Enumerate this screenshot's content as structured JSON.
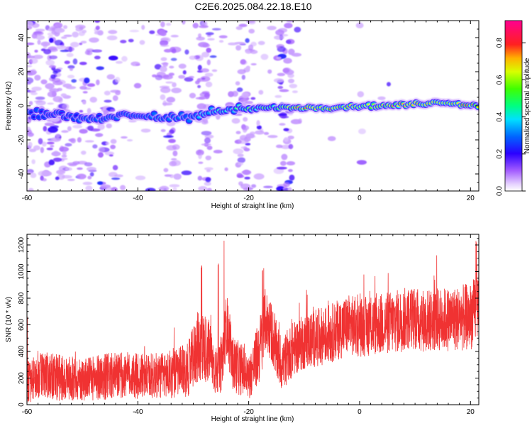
{
  "title": "C2E6.2025.084.22.18.E10",
  "chart_data": [
    {
      "type": "heatmap",
      "xlabel": "Height of straight line (km)",
      "ylabel": "Frequency (Hz)",
      "xlim": [
        -60,
        21.5
      ],
      "ylim": [
        -50,
        50
      ],
      "xticks": [
        -60,
        -40,
        -20,
        0,
        20
      ],
      "yticks": [
        -40,
        -20,
        0,
        20,
        40
      ],
      "colorbar": {
        "label": "Normalized spectral amplitude",
        "range": [
          0,
          0.92
        ],
        "ticks": [
          0.0,
          0.2,
          0.4,
          0.6,
          0.8
        ]
      },
      "ridge": {
        "x": [
          -60,
          -55,
          -50,
          -45,
          -40,
          -35,
          -30,
          -25,
          -20,
          -15,
          -10,
          -5,
          0,
          5,
          10,
          15,
          21.5
        ],
        "freq": [
          -3,
          -5,
          -7,
          -7,
          -6,
          -7,
          -6,
          -3,
          -2,
          -1,
          -1,
          -1,
          0,
          0,
          1,
          2,
          0
        ],
        "amplitude": [
          0.3,
          0.25,
          0.3,
          0.3,
          0.3,
          0.35,
          0.4,
          0.45,
          0.55,
          0.6,
          0.85,
          0.85,
          0.75,
          0.8,
          0.85,
          0.9,
          0.85
        ]
      }
    },
    {
      "type": "line",
      "xlabel": "Height of straight line (km)",
      "ylabel": "SNR (10 * v/v)",
      "xlim": [
        -60,
        21.5
      ],
      "ylim": [
        0,
        1280
      ],
      "xticks": [
        -60,
        -40,
        -20,
        0,
        20
      ],
      "yticks": [
        0,
        200,
        400,
        600,
        800,
        1000,
        1200
      ],
      "color": "#f03232",
      "envelope": {
        "x": [
          -60,
          -57,
          -54,
          -50,
          -46,
          -42,
          -38,
          -34,
          -31,
          -29,
          -28,
          -27,
          -26,
          -25,
          -24,
          -23,
          -22,
          -21,
          -20,
          -19,
          -18,
          -17,
          -16,
          -15,
          -14,
          -12,
          -10,
          -8,
          -5,
          -2,
          0,
          3,
          6,
          9,
          12,
          15,
          18,
          20,
          21.5
        ],
        "center": [
          170,
          230,
          200,
          190,
          210,
          220,
          210,
          230,
          260,
          450,
          430,
          400,
          250,
          260,
          620,
          320,
          280,
          260,
          200,
          300,
          420,
          640,
          560,
          400,
          300,
          420,
          470,
          500,
          540,
          600,
          580,
          600,
          620,
          650,
          630,
          640,
          650,
          660,
          750
        ],
        "spread": [
          200,
          220,
          220,
          200,
          220,
          220,
          210,
          230,
          250,
          350,
          330,
          300,
          230,
          220,
          300,
          260,
          260,
          240,
          200,
          260,
          320,
          300,
          280,
          280,
          250,
          260,
          260,
          270,
          280,
          290,
          280,
          290,
          300,
          300,
          300,
          300,
          310,
          320,
          320
        ],
        "peaks": [
          [
            -60,
            700
          ],
          [
            -25.5,
            1060
          ],
          [
            -24.5,
            1270
          ],
          [
            -28.5,
            1060
          ],
          [
            -17.5,
            1020
          ],
          [
            21,
            1240
          ]
        ]
      }
    }
  ]
}
